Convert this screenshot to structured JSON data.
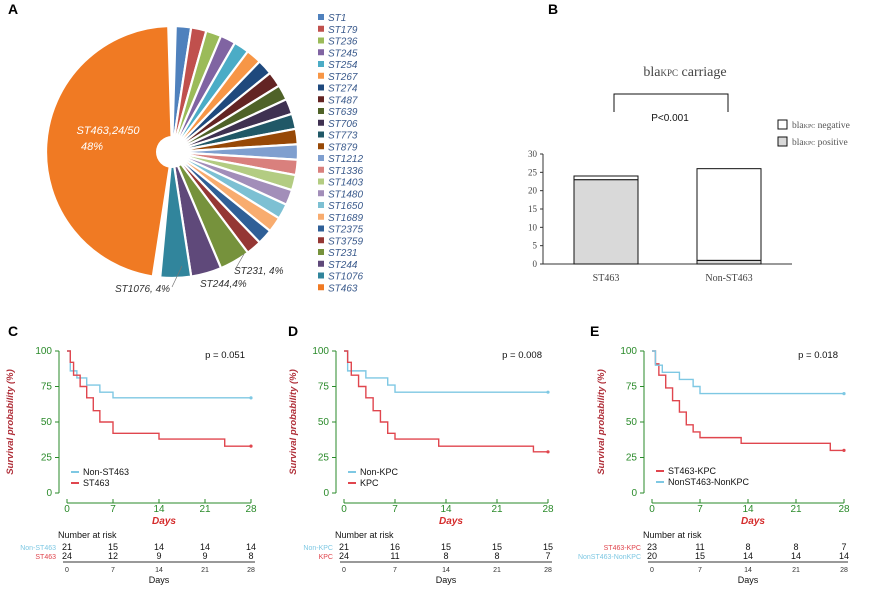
{
  "panels": {
    "a": "A",
    "b": "B",
    "c": "C",
    "d": "D",
    "e": "E"
  },
  "chart_data": [
    {
      "type": "pie",
      "panel": "A",
      "total_isolates": 50,
      "labels": [
        "ST1",
        "ST179",
        "ST236",
        "ST245",
        "ST254",
        "ST267",
        "ST274",
        "ST487",
        "ST639",
        "ST706",
        "ST773",
        "ST879",
        "ST1212",
        "ST1336",
        "ST1403",
        "ST1480",
        "ST1650",
        "ST1689",
        "ST2375",
        "ST3759",
        "ST231",
        "ST244",
        "ST1076",
        "ST463"
      ],
      "values": [
        1,
        1,
        1,
        1,
        1,
        1,
        1,
        1,
        1,
        1,
        1,
        1,
        1,
        1,
        1,
        1,
        1,
        1,
        1,
        1,
        2,
        2,
        2,
        24
      ],
      "colors": [
        "#4f81bd",
        "#c0504d",
        "#9bbb59",
        "#8064a2",
        "#4bacc6",
        "#f79646",
        "#1f497d",
        "#632423",
        "#4f6228",
        "#3f3151",
        "#205867",
        "#974806",
        "#7f9fcf",
        "#d9807d",
        "#b3cc82",
        "#a28eb9",
        "#7dc0d3",
        "#f8ac6f",
        "#2f5f97",
        "#953734",
        "#76923c",
        "#5f497a",
        "#31859c",
        "#f07a23"
      ],
      "annotations": {
        "st463_line1": "ST463,24/50",
        "st463_line2": "48%",
        "st231": "ST231, 4%",
        "st244": "ST244,4%",
        "st1076": "ST1076, 4%"
      }
    },
    {
      "type": "bar",
      "panel": "B",
      "title_main": "bla",
      "title_sub": "KPC",
      "title_rest": " carriage",
      "categories": [
        "ST463",
        "Non-ST463"
      ],
      "series": [
        {
          "name": "blaKPC positive",
          "values": [
            23,
            1
          ],
          "color": "#d9d9d9"
        },
        {
          "name": "blaKPC negative",
          "values": [
            1,
            25
          ],
          "color": "#ffffff"
        }
      ],
      "legend": [
        {
          "main": "bla",
          "sub": "KPC",
          "rest": " negative"
        },
        {
          "main": "bla",
          "sub": "KPC",
          "rest": " positive"
        }
      ],
      "yticks": [
        0,
        5,
        10,
        15,
        20,
        25,
        30
      ],
      "ylim": [
        0,
        30
      ],
      "significance": "P<0.001"
    },
    {
      "type": "line",
      "subtype": "kaplan-meier",
      "panel": "C",
      "ylabel": "Survival probability (%)",
      "xlabel": "Days",
      "yticks": [
        0,
        25,
        50,
        75,
        100
      ],
      "xticks": [
        0,
        7,
        14,
        21,
        28
      ],
      "pvalue": "p = 0.051",
      "series": [
        {
          "name": "Non-ST463",
          "color": "#7ec8e3",
          "steps": [
            [
              0,
              100
            ],
            [
              0.5,
              86
            ],
            [
              1.5,
              81
            ],
            [
              3,
              76
            ],
            [
              5,
              71
            ],
            [
              7,
              67
            ],
            [
              28,
              67
            ]
          ]
        },
        {
          "name": "ST463",
          "color": "#e0464e",
          "steps": [
            [
              0,
              100
            ],
            [
              0.5,
              92
            ],
            [
              1,
              83
            ],
            [
              2,
              75
            ],
            [
              3,
              67
            ],
            [
              4,
              58
            ],
            [
              5,
              50
            ],
            [
              7,
              42
            ],
            [
              14,
              38
            ],
            [
              24,
              33
            ],
            [
              28,
              33
            ]
          ]
        }
      ],
      "legend_order": [
        0,
        1
      ],
      "risk_table": {
        "title": "Number at risk",
        "xlabel": "Days",
        "rows": [
          {
            "label": "Non-ST463",
            "color": "#7ec8e3",
            "values": [
              "21",
              "15",
              "14",
              "14",
              "14"
            ]
          },
          {
            "label": "ST463",
            "color": "#e0464e",
            "values": [
              "24",
              "12",
              "9",
              "9",
              "8"
            ]
          }
        ]
      }
    },
    {
      "type": "line",
      "subtype": "kaplan-meier",
      "panel": "D",
      "ylabel": "Survival probability (%)",
      "xlabel": "Days",
      "yticks": [
        0,
        25,
        50,
        75,
        100
      ],
      "xticks": [
        0,
        7,
        14,
        21,
        28
      ],
      "pvalue": "p = 0.008",
      "series": [
        {
          "name": "Non-KPC",
          "color": "#7ec8e3",
          "steps": [
            [
              0,
              100
            ],
            [
              0.5,
              86
            ],
            [
              3,
              81
            ],
            [
              6,
              76
            ],
            [
              7,
              71
            ],
            [
              28,
              71
            ]
          ]
        },
        {
          "name": "KPC",
          "color": "#e0464e",
          "steps": [
            [
              0,
              100
            ],
            [
              0.5,
              92
            ],
            [
              1,
              83
            ],
            [
              2,
              75
            ],
            [
              3,
              67
            ],
            [
              4,
              58
            ],
            [
              5,
              50
            ],
            [
              6,
              42
            ],
            [
              7,
              38
            ],
            [
              13,
              33
            ],
            [
              26,
              29
            ],
            [
              28,
              29
            ]
          ]
        }
      ],
      "legend_order": [
        0,
        1
      ],
      "risk_table": {
        "title": "Number at risk",
        "xlabel": "Days",
        "rows": [
          {
            "label": "Non-KPC",
            "color": "#7ec8e3",
            "values": [
              "21",
              "16",
              "15",
              "15",
              "15"
            ]
          },
          {
            "label": "KPC",
            "color": "#e0464e",
            "values": [
              "24",
              "11",
              "8",
              "8",
              "7"
            ]
          }
        ]
      }
    },
    {
      "type": "line",
      "subtype": "kaplan-meier",
      "panel": "E",
      "ylabel": "Survival probability (%)",
      "xlabel": "Days",
      "yticks": [
        0,
        25,
        50,
        75,
        100
      ],
      "xticks": [
        0,
        7,
        14,
        21,
        28
      ],
      "pvalue": "p = 0.018",
      "series": [
        {
          "name": "ST463-KPC",
          "color": "#e0464e",
          "steps": [
            [
              0,
              100
            ],
            [
              0.5,
              91
            ],
            [
              1,
              83
            ],
            [
              2,
              74
            ],
            [
              3,
              65
            ],
            [
              4,
              57
            ],
            [
              5,
              48
            ],
            [
              6,
              43
            ],
            [
              7,
              39
            ],
            [
              13,
              35
            ],
            [
              26,
              30
            ],
            [
              28,
              30
            ]
          ]
        },
        {
          "name": "NonST463-NonKPC",
          "color": "#7ec8e3",
          "steps": [
            [
              0,
              100
            ],
            [
              0.5,
              90
            ],
            [
              1.5,
              85
            ],
            [
              4,
              80
            ],
            [
              6,
              75
            ],
            [
              7,
              70
            ],
            [
              28,
              70
            ]
          ]
        }
      ],
      "legend_order": [
        0,
        1
      ],
      "risk_table": {
        "title": "Number at risk",
        "xlabel": "Days",
        "rows": [
          {
            "label": "ST463-KPC",
            "color": "#e0464e",
            "values": [
              "23",
              "11",
              "8",
              "8",
              "7"
            ]
          },
          {
            "label": "NonST463-NonKPC",
            "color": "#7ec8e3",
            "values": [
              "20",
              "15",
              "14",
              "14",
              "14"
            ]
          }
        ]
      }
    }
  ]
}
